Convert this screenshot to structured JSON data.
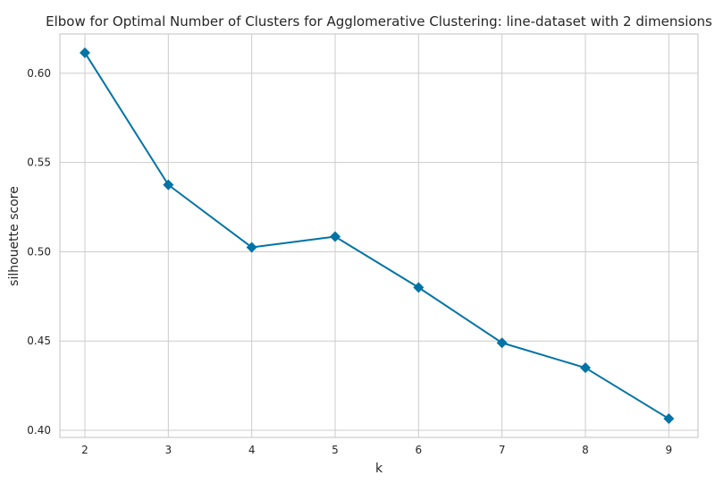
{
  "chart_data": {
    "type": "line",
    "title": "Elbow for Optimal Number of Clusters for Agglomerative Clustering: line-dataset with 2 dimensions",
    "xlabel": "k",
    "ylabel": "silhouette score",
    "x": [
      2,
      3,
      4,
      5,
      6,
      7,
      8,
      9
    ],
    "series": [
      {
        "values": [
          0.6115,
          0.5375,
          0.5025,
          0.5085,
          0.48,
          0.449,
          0.435,
          0.4065
        ]
      }
    ],
    "xlim": [
      1.7,
      9.35
    ],
    "ylim": [
      0.396,
      0.622
    ],
    "x_ticks": [
      "2",
      "3",
      "4",
      "5",
      "6",
      "7",
      "8",
      "9"
    ],
    "y_ticks": [
      "0.40",
      "0.45",
      "0.50",
      "0.55",
      "0.60"
    ],
    "grid": true,
    "line_color": "#0173a6",
    "marker": "diamond"
  }
}
